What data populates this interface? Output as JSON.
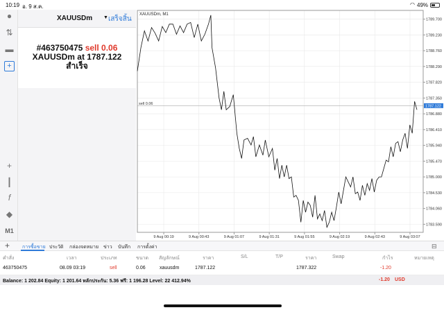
{
  "status_bar": {
    "time": "10:19",
    "date": "อ. 9 ส.ค.",
    "battery": "49%",
    "battery_level": 0.49
  },
  "order_panel": {
    "symbol": "XAUUSDm",
    "done_label": "เสร็จสิ้น",
    "order_id": "#463750475",
    "order_type": "sell 0.06",
    "order_price_line": "XAUUSDm at 1787.122",
    "result": "สำเร็จ"
  },
  "left_toolbar": {
    "timeframe_label": "M1",
    "icons": [
      "user-icon",
      "trade-icon",
      "chat-icon",
      "new-order-icon",
      "crosshair-icon",
      "candles-icon",
      "indicator-icon",
      "objects-icon"
    ]
  },
  "chart": {
    "title": "XAUUSDm, M1",
    "sell_line_label": "sell 0.06",
    "current_price_label": "1787.122",
    "grid_color": "#e8e8e8",
    "line_color": "#111111",
    "tag_color": "#2f7bd9"
  },
  "chart_data": {
    "type": "line",
    "title": "XAUUSDm, M1",
    "y_tick_labels": [
      "1789.700",
      "1789.230",
      "1788.760",
      "1788.290",
      "1787.820",
      "1787.350",
      "1786.880",
      "1786.410",
      "1785.940",
      "1785.470",
      "1785.000",
      "1784.530",
      "1784.060",
      "1783.590"
    ],
    "x_tick_labels": [
      "9 Aug 00:19",
      "9 Aug 00:43",
      "9 Aug 01:07",
      "9 Aug 01:31",
      "9 Aug 01:55",
      "9 Aug 02:19",
      "9 Aug 02:43",
      "9 Aug 03:07"
    ],
    "ylim": [
      1783.35,
      1789.96
    ],
    "x_start": 0,
    "x_end": 195,
    "x_tick_positions": [
      18,
      42,
      66,
      90,
      114,
      138,
      162,
      186
    ],
    "sell_level": 1787.122,
    "grid": true,
    "series": [
      {
        "values": [
          [
            0,
            1788.15
          ],
          [
            3,
            1788.85
          ],
          [
            6,
            1789.35
          ],
          [
            9,
            1789.05
          ],
          [
            12,
            1789.45
          ],
          [
            15,
            1789.28
          ],
          [
            18,
            1789.05
          ],
          [
            21,
            1789.48
          ],
          [
            24,
            1789.3
          ],
          [
            27,
            1789.55
          ],
          [
            30,
            1789.55
          ],
          [
            33,
            1789.25
          ],
          [
            36,
            1789.5
          ],
          [
            39,
            1789.3
          ],
          [
            42,
            1789.55
          ],
          [
            45,
            1789.6
          ],
          [
            48,
            1789.15
          ],
          [
            51,
            1789.55
          ],
          [
            54,
            1789.05
          ],
          [
            57,
            1789.25
          ],
          [
            60,
            1789.55
          ],
          [
            62,
            1789.82
          ],
          [
            63,
            1788.85
          ],
          [
            66,
            1788.25
          ],
          [
            69,
            1787.35
          ],
          [
            71,
            1787.0
          ],
          [
            73,
            1787.55
          ],
          [
            75,
            1787.0
          ],
          [
            78,
            1787.1
          ],
          [
            81,
            1787.45
          ],
          [
            84,
            1786.3
          ],
          [
            86,
            1785.85
          ],
          [
            88,
            1785.55
          ],
          [
            90,
            1786.1
          ],
          [
            93,
            1786.15
          ],
          [
            96,
            1785.95
          ],
          [
            98,
            1786.2
          ],
          [
            100,
            1785.6
          ],
          [
            103,
            1785.95
          ],
          [
            106,
            1785.65
          ],
          [
            108,
            1786.1
          ],
          [
            111,
            1785.6
          ],
          [
            114,
            1785.85
          ],
          [
            116,
            1785.2
          ],
          [
            118,
            1785.55
          ],
          [
            120,
            1784.95
          ],
          [
            122,
            1785.35
          ],
          [
            124,
            1785.0
          ],
          [
            126,
            1785.35
          ],
          [
            128,
            1784.95
          ],
          [
            130,
            1785.0
          ],
          [
            132,
            1784.4
          ],
          [
            134,
            1784.45
          ],
          [
            136,
            1784.3
          ],
          [
            138,
            1783.65
          ],
          [
            140,
            1784.3
          ],
          [
            142,
            1783.95
          ],
          [
            144,
            1784.25
          ],
          [
            146,
            1784.15
          ],
          [
            148,
            1783.8
          ],
          [
            150,
            1784.45
          ],
          [
            152,
            1783.75
          ],
          [
            154,
            1783.9
          ],
          [
            156,
            1783.7
          ],
          [
            158,
            1784.0
          ],
          [
            160,
            1783.5
          ],
          [
            162,
            1783.65
          ],
          [
            164,
            1783.95
          ],
          [
            166,
            1783.7
          ],
          [
            168,
            1784.1
          ],
          [
            170,
            1784.55
          ],
          [
            172,
            1784.2
          ],
          [
            174,
            1784.6
          ],
          [
            176,
            1785.0
          ],
          [
            178,
            1784.85
          ],
          [
            180,
            1784.7
          ],
          [
            182,
            1785.0
          ],
          [
            184,
            1784.5
          ],
          [
            186,
            1784.55
          ],
          [
            188,
            1784.3
          ],
          [
            190,
            1784.75
          ],
          [
            192,
            1784.45
          ],
          [
            194,
            1784.8
          ],
          [
            196,
            1784.6
          ],
          [
            198,
            1784.95
          ],
          [
            200,
            1784.55
          ],
          [
            202,
            1784.9
          ],
          [
            204,
            1785.0
          ],
          [
            206,
            1785.0
          ],
          [
            208,
            1785.25
          ],
          [
            210,
            1785.5
          ],
          [
            212,
            1785.45
          ],
          [
            214,
            1785.9
          ],
          [
            216,
            1785.6
          ],
          [
            218,
            1786.0
          ],
          [
            220,
            1786.05
          ],
          [
            222,
            1785.75
          ],
          [
            224,
            1786.1
          ],
          [
            226,
            1786.3
          ],
          [
            228,
            1785.85
          ],
          [
            230,
            1786.55
          ],
          [
            232,
            1786.3
          ],
          [
            234,
            1787.25
          ],
          [
            236,
            1787.0
          ]
        ]
      }
    ]
  },
  "bottom_tabs": {
    "items": [
      "การซื้อขาย",
      "ประวัติ",
      "กล่องจดหมาย",
      "ข่าว",
      "บันทึก",
      "การตั้งค่า"
    ],
    "active_index": 0
  },
  "positions_table": {
    "headers": [
      "คำสั่ง",
      "เวลา",
      "ประเภท",
      "ขนาด",
      "สัญลักษณ์",
      "ราคา",
      "S/L",
      "T/P",
      "ราคา",
      "Swap",
      "กำไร",
      "หมายเหตุ"
    ],
    "rows": [
      {
        "order": "463750475",
        "time": "08.09 03:19",
        "type": "sell",
        "volume": "0.06",
        "symbol": "xauusdm",
        "price": "1787.122",
        "sl": "",
        "tp": "",
        "current_price": "1787.322",
        "swap": "",
        "profit": "-1.20",
        "comment": ""
      }
    ],
    "balance_line": "Balance: 1 202.84 Equity: 1 201.64 หลักประกัน: 5.36 ฟรี: 1 196.28 Level: 22 412.94%",
    "total_profit": "-1.20",
    "currency": "USD"
  }
}
